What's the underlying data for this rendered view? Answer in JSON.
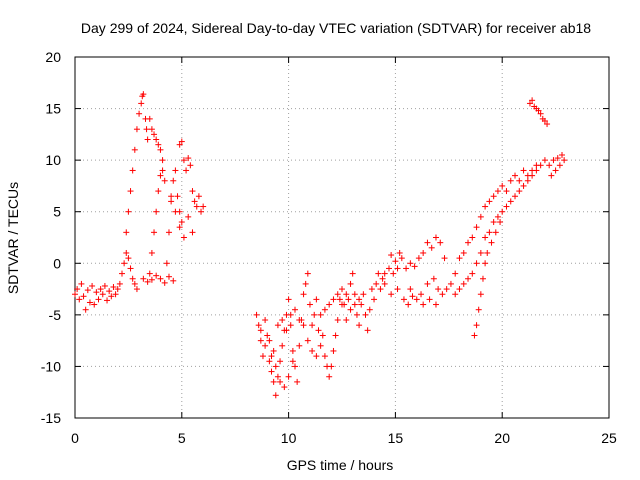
{
  "chart_data": {
    "type": "scatter",
    "title": "Day 299 of 2024, Sidereal Day-to-day VTEC variation (SDTVAR) for receiver ab18",
    "xlabel": "GPS time / hours",
    "ylabel": "SDTVAR / TECUs",
    "xlim": [
      0,
      25
    ],
    "ylim": [
      -15,
      20
    ],
    "x_ticks": [
      "0",
      "5",
      "10",
      "15",
      "20",
      "25"
    ],
    "y_ticks": [
      "-15",
      "-10",
      "-5",
      "0",
      "5",
      "10",
      "15",
      "20"
    ],
    "grid": true,
    "marker": "+",
    "color": "#ff0000",
    "series": [
      {
        "points": [
          [
            0.0,
            -3.0
          ],
          [
            0.1,
            -2.5
          ],
          [
            0.2,
            -3.5
          ],
          [
            0.3,
            -2.0
          ],
          [
            0.4,
            -3.2
          ],
          [
            0.5,
            -4.5
          ],
          [
            0.6,
            -2.6
          ],
          [
            0.7,
            -3.8
          ],
          [
            0.8,
            -2.2
          ],
          [
            0.9,
            -4.0
          ],
          [
            1.0,
            -2.8
          ],
          [
            1.1,
            -3.5
          ],
          [
            1.2,
            -2.5
          ],
          [
            1.3,
            -3.0
          ],
          [
            1.4,
            -2.2
          ],
          [
            1.5,
            -3.6
          ],
          [
            1.6,
            -2.7
          ],
          [
            1.7,
            -3.2
          ],
          [
            1.8,
            -2.3
          ],
          [
            1.9,
            -3.0
          ],
          [
            2.0,
            -2.5
          ],
          [
            2.1,
            -2.0
          ],
          [
            2.2,
            -1.0
          ],
          [
            2.3,
            0.0
          ],
          [
            2.4,
            1.0
          ],
          [
            2.5,
            0.5
          ],
          [
            2.6,
            -0.5
          ],
          [
            2.7,
            -1.5
          ],
          [
            2.8,
            -2.0
          ],
          [
            2.9,
            -2.5
          ],
          [
            2.4,
            3.0
          ],
          [
            2.5,
            5.0
          ],
          [
            2.6,
            7.0
          ],
          [
            2.7,
            9.0
          ],
          [
            2.8,
            11.0
          ],
          [
            2.9,
            13.0
          ],
          [
            3.0,
            14.5
          ],
          [
            3.1,
            15.5
          ],
          [
            3.15,
            16.2
          ],
          [
            3.2,
            16.4
          ],
          [
            3.3,
            14.0
          ],
          [
            3.35,
            13.0
          ],
          [
            3.4,
            12.0
          ],
          [
            3.5,
            14.0
          ],
          [
            3.6,
            13.0
          ],
          [
            3.7,
            12.5
          ],
          [
            3.8,
            12.0
          ],
          [
            3.9,
            11.5
          ],
          [
            4.0,
            11.0
          ],
          [
            4.1,
            10.0
          ],
          [
            3.5,
            -1.0
          ],
          [
            3.6,
            1.0
          ],
          [
            3.7,
            3.0
          ],
          [
            3.8,
            5.0
          ],
          [
            3.9,
            7.0
          ],
          [
            4.0,
            8.5
          ],
          [
            4.1,
            9.0
          ],
          [
            4.2,
            8.0
          ],
          [
            3.2,
            -1.5
          ],
          [
            3.4,
            -1.8
          ],
          [
            3.6,
            -1.6
          ],
          [
            3.8,
            -1.2
          ],
          [
            4.0,
            -1.5
          ],
          [
            4.2,
            -1.9
          ],
          [
            4.4,
            -1.3
          ],
          [
            4.6,
            -1.7
          ],
          [
            4.3,
            0.0
          ],
          [
            4.4,
            3.0
          ],
          [
            4.5,
            6.0
          ],
          [
            4.6,
            8.0
          ],
          [
            4.7,
            9.0
          ],
          [
            4.8,
            6.5
          ],
          [
            4.9,
            5.0
          ],
          [
            5.0,
            4.0
          ],
          [
            4.9,
            11.5
          ],
          [
            5.0,
            11.8
          ],
          [
            5.1,
            10.0
          ],
          [
            5.2,
            9.0
          ],
          [
            5.3,
            10.2
          ],
          [
            5.4,
            9.5
          ],
          [
            5.5,
            7.0
          ],
          [
            5.6,
            6.0
          ],
          [
            5.7,
            5.5
          ],
          [
            5.8,
            6.5
          ],
          [
            5.9,
            5.0
          ],
          [
            6.0,
            5.5
          ],
          [
            4.5,
            6.5
          ],
          [
            4.7,
            5.0
          ],
          [
            4.9,
            3.5
          ],
          [
            5.1,
            2.5
          ],
          [
            5.3,
            4.5
          ],
          [
            5.5,
            3.0
          ]
        ]
      },
      {
        "points": [
          [
            8.5,
            -5.0
          ],
          [
            8.6,
            -6.0
          ],
          [
            8.7,
            -7.5
          ],
          [
            8.8,
            -9.0
          ],
          [
            8.9,
            -8.0
          ],
          [
            9.0,
            -7.0
          ],
          [
            9.1,
            -9.5
          ],
          [
            9.2,
            -10.5
          ],
          [
            9.3,
            -11.5
          ],
          [
            9.4,
            -12.8
          ],
          [
            9.5,
            -11.0
          ],
          [
            9.6,
            -9.5
          ],
          [
            9.7,
            -8.0
          ],
          [
            9.8,
            -6.5
          ],
          [
            9.9,
            -5.0
          ],
          [
            10.0,
            -3.5
          ],
          [
            10.1,
            -6.0
          ],
          [
            10.2,
            -8.5
          ],
          [
            10.3,
            -10.0
          ],
          [
            10.4,
            -11.5
          ],
          [
            10.5,
            -8.0
          ],
          [
            10.6,
            -5.5
          ],
          [
            10.7,
            -3.0
          ],
          [
            10.8,
            -2.0
          ],
          [
            10.9,
            -1.0
          ],
          [
            11.0,
            -4.0
          ],
          [
            11.1,
            -6.0
          ],
          [
            11.2,
            -5.0
          ],
          [
            11.3,
            -3.5
          ],
          [
            11.4,
            -6.5
          ],
          [
            11.5,
            -8.0
          ],
          [
            11.6,
            -7.0
          ],
          [
            11.7,
            -9.0
          ],
          [
            11.8,
            -10.0
          ],
          [
            11.9,
            -11.0
          ],
          [
            12.0,
            -10.0
          ],
          [
            12.1,
            -8.5
          ],
          [
            12.2,
            -7.0
          ],
          [
            12.3,
            -5.5
          ],
          [
            12.4,
            -3.5
          ],
          [
            12.5,
            -2.5
          ],
          [
            12.6,
            -4.0
          ],
          [
            12.7,
            -5.5
          ],
          [
            12.8,
            -3.5
          ],
          [
            12.9,
            -2.0
          ],
          [
            13.0,
            -1.0
          ],
          [
            13.1,
            -3.0
          ],
          [
            13.2,
            -5.0
          ],
          [
            13.3,
            -6.0
          ],
          [
            13.4,
            -4.0
          ],
          [
            13.5,
            -3.0
          ],
          [
            13.6,
            -5.0
          ],
          [
            13.7,
            -6.5
          ],
          [
            13.8,
            -4.5
          ],
          [
            13.9,
            -2.5
          ],
          [
            14.0,
            -3.5
          ],
          [
            14.1,
            -2.0
          ],
          [
            14.2,
            -1.0
          ],
          [
            14.3,
            -2.5
          ],
          [
            14.4,
            -1.5
          ],
          [
            9.5,
            -6.0
          ],
          [
            9.7,
            -5.5
          ],
          [
            9.9,
            -6.5
          ],
          [
            10.1,
            -5.0
          ],
          [
            10.3,
            -4.5
          ],
          [
            10.5,
            -5.5
          ],
          [
            10.7,
            -6.0
          ],
          [
            10.9,
            -7.5
          ],
          [
            11.1,
            -8.5
          ],
          [
            11.3,
            -9.0
          ],
          [
            11.5,
            -5.0
          ],
          [
            11.7,
            -4.5
          ],
          [
            11.9,
            -4.0
          ],
          [
            12.1,
            -3.5
          ],
          [
            12.3,
            -3.0
          ],
          [
            12.5,
            -4.0
          ],
          [
            12.7,
            -3.0
          ],
          [
            12.9,
            -4.5
          ],
          [
            13.1,
            -4.0
          ],
          [
            13.3,
            -3.5
          ],
          [
            9.2,
            -9.0
          ],
          [
            9.4,
            -10.0
          ],
          [
            9.6,
            -11.5
          ],
          [
            9.8,
            -12.0
          ],
          [
            10.0,
            -11.0
          ],
          [
            10.2,
            -9.5
          ],
          [
            8.7,
            -6.5
          ],
          [
            8.9,
            -5.5
          ],
          [
            9.1,
            -7.5
          ],
          [
            9.3,
            -8.5
          ]
        ]
      },
      {
        "points": [
          [
            14.5,
            -1.0
          ],
          [
            14.7,
            -0.5
          ],
          [
            14.9,
            -1.0
          ],
          [
            15.1,
            -0.5
          ],
          [
            15.3,
            0.5
          ],
          [
            15.5,
            -0.5
          ],
          [
            15.7,
            0.0
          ],
          [
            15.9,
            -0.3
          ],
          [
            16.1,
            0.5
          ],
          [
            16.3,
            1.0
          ],
          [
            16.5,
            2.0
          ],
          [
            16.7,
            1.5
          ],
          [
            16.9,
            2.5
          ],
          [
            17.1,
            2.0
          ],
          [
            17.3,
            0.5
          ],
          [
            14.8,
            0.8
          ],
          [
            15.0,
            0.2
          ],
          [
            15.2,
            1.0
          ],
          [
            14.5,
            -2.0
          ],
          [
            14.8,
            -3.0
          ],
          [
            15.1,
            -2.5
          ],
          [
            15.4,
            -3.5
          ],
          [
            15.7,
            -2.5
          ],
          [
            16.0,
            -3.5
          ],
          [
            16.3,
            -4.0
          ],
          [
            16.6,
            -3.5
          ],
          [
            16.9,
            -4.0
          ],
          [
            17.2,
            -3.0
          ],
          [
            17.4,
            -2.5
          ],
          [
            17.6,
            -2.0
          ],
          [
            17.8,
            -1.0
          ],
          [
            18.0,
            0.5
          ],
          [
            18.2,
            1.0
          ],
          [
            18.4,
            2.0
          ],
          [
            18.6,
            2.5
          ],
          [
            18.8,
            3.5
          ],
          [
            19.0,
            4.5
          ],
          [
            19.2,
            5.5
          ],
          [
            19.4,
            6.0
          ],
          [
            19.6,
            6.5
          ],
          [
            19.8,
            7.0
          ],
          [
            20.0,
            7.5
          ],
          [
            20.2,
            7.0
          ],
          [
            20.4,
            8.0
          ],
          [
            20.6,
            8.5
          ],
          [
            20.8,
            8.0
          ],
          [
            21.0,
            9.0
          ],
          [
            21.2,
            8.5
          ],
          [
            21.4,
            9.0
          ],
          [
            21.6,
            9.5
          ],
          [
            21.8,
            9.5
          ],
          [
            22.0,
            10.0
          ],
          [
            22.2,
            9.5
          ],
          [
            22.4,
            10.0
          ],
          [
            22.6,
            10.2
          ],
          [
            22.8,
            10.5
          ],
          [
            17.8,
            -3.0
          ],
          [
            18.0,
            -2.5
          ],
          [
            18.2,
            -2.0
          ],
          [
            18.4,
            -1.5
          ],
          [
            18.6,
            -1.0
          ],
          [
            18.8,
            0.0
          ],
          [
            19.0,
            1.0
          ],
          [
            19.2,
            2.5
          ],
          [
            19.4,
            3.0
          ],
          [
            19.6,
            4.0
          ],
          [
            19.8,
            4.5
          ],
          [
            20.0,
            5.0
          ],
          [
            20.2,
            5.5
          ],
          [
            20.4,
            6.0
          ],
          [
            20.6,
            6.5
          ],
          [
            20.8,
            7.0
          ],
          [
            21.0,
            7.5
          ],
          [
            21.2,
            8.0
          ],
          [
            21.4,
            8.5
          ],
          [
            21.6,
            9.0
          ],
          [
            18.7,
            -7.0
          ],
          [
            18.8,
            -6.0
          ],
          [
            18.9,
            -4.5
          ],
          [
            19.0,
            -3.0
          ],
          [
            19.1,
            -1.5
          ],
          [
            19.2,
            0.0
          ],
          [
            19.3,
            1.0
          ],
          [
            19.5,
            2.0
          ],
          [
            19.7,
            3.0
          ],
          [
            19.9,
            4.0
          ],
          [
            21.3,
            15.5
          ],
          [
            21.4,
            15.8
          ],
          [
            21.5,
            15.2
          ],
          [
            21.6,
            15.0
          ],
          [
            21.7,
            14.8
          ],
          [
            21.8,
            14.5
          ],
          [
            21.9,
            14.0
          ],
          [
            22.0,
            13.8
          ],
          [
            22.1,
            13.5
          ],
          [
            22.3,
            8.5
          ],
          [
            22.5,
            9.0
          ],
          [
            22.7,
            9.5
          ],
          [
            22.9,
            10.0
          ],
          [
            16.2,
            -3.0
          ],
          [
            16.5,
            -2.0
          ],
          [
            16.8,
            -1.5
          ],
          [
            17.0,
            -2.5
          ],
          [
            15.6,
            -4.0
          ],
          [
            15.8,
            -3.2
          ]
        ]
      }
    ]
  }
}
